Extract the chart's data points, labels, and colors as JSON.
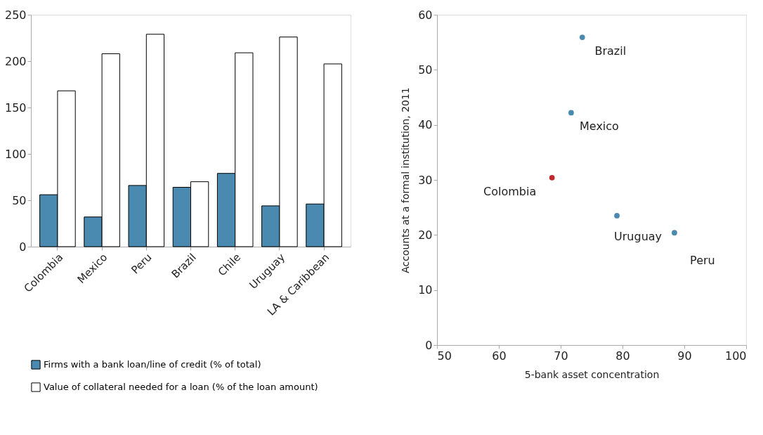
{
  "chart_data": [
    {
      "type": "bar",
      "categories": [
        "Colombia",
        "Mexico",
        "Peru",
        "Brazil",
        "Chile",
        "Uruguay",
        "LA & Caribbean"
      ],
      "series": [
        {
          "name": "Firms with a bank loan/line of credit (% of total)",
          "color": "#4a8ab0",
          "values": [
            56,
            32,
            66,
            64,
            79,
            44,
            46
          ]
        },
        {
          "name": "Value of collateral needed  for a loan (% of the loan amount)",
          "color": "#ffffff",
          "values": [
            168,
            208,
            229,
            70,
            209,
            226,
            197
          ]
        }
      ],
      "ylim": [
        0,
        250
      ],
      "yticks": [
        0,
        50,
        100,
        150,
        200,
        250
      ],
      "grid": false,
      "legend": "bottom"
    },
    {
      "type": "scatter",
      "xlabel": "5-bank asset concentration",
      "ylabel": "Accounts at a formal institution, 2011",
      "x": [
        73.5,
        71.7,
        68.6,
        79.1,
        88.4
      ],
      "values": [
        55.9,
        42.2,
        30.4,
        23.5,
        20.4
      ],
      "colors": [
        "#4a8ab0",
        "#4a8ab0",
        "#c0282d",
        "#4a8ab0",
        "#4a8ab0"
      ],
      "annotations": [
        {
          "text": "Brazil",
          "x": 73.5,
          "y": 55.9
        },
        {
          "text": "Mexico",
          "x": 71.7,
          "y": 42.2
        },
        {
          "text": "Colombia",
          "x": 68.6,
          "y": 30.4
        },
        {
          "text": "Uruguay",
          "x": 79.1,
          "y": 23.5
        },
        {
          "text": "Peru",
          "x": 88.4,
          "y": 20.4
        }
      ],
      "xlim": [
        50,
        100
      ],
      "xticks": [
        50,
        60,
        70,
        80,
        90,
        100
      ],
      "ylim": [
        0,
        60
      ],
      "yticks": [
        0,
        10,
        20,
        30,
        40,
        50,
        60
      ],
      "grid": false,
      "marker": "circle"
    }
  ]
}
